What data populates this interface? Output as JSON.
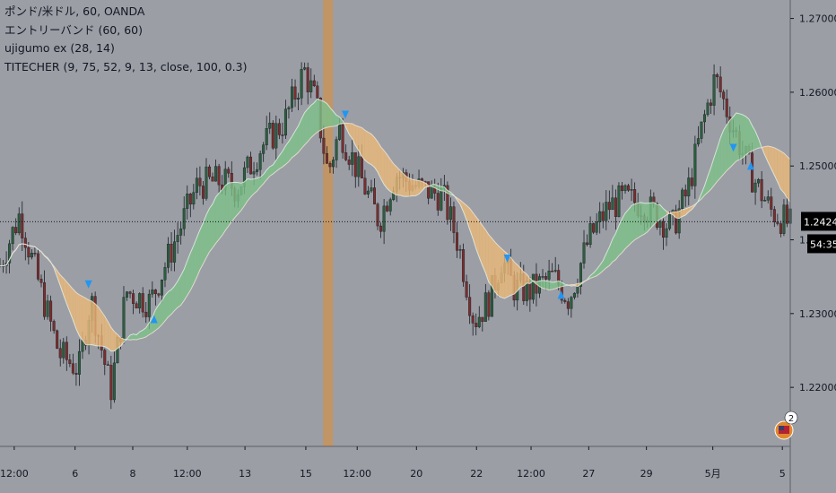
{
  "legend": {
    "line1": "ポンド/米ドル, 60, OANDA",
    "line2": "エントリーバンド (60, 60)",
    "line3": "ujigumo ex (28, 14)",
    "line4": "TITECHER (9, 75, 52, 9, 13, close, 100, 0.3)"
  },
  "price_axis": {
    "ticks": [
      "1.27000",
      "1.26000",
      "1.25000",
      "1.24000",
      "1.23000",
      "1.22000"
    ],
    "current_price": "1.24244",
    "countdown": "54:35"
  },
  "time_axis": {
    "ticks": [
      "12:00",
      "6",
      "8",
      "12:00",
      "13",
      "15",
      "12:00",
      "20",
      "22",
      "12:00",
      "27",
      "29",
      "5月",
      "5"
    ]
  },
  "badge": {
    "count": "2"
  },
  "colors": {
    "background": "#9b9ea5",
    "bull_candle": "#2b5e3e",
    "bear_candle": "#7a2e2e",
    "cloud_bear": "#e8b77a",
    "cloud_bull": "#7fbf8a",
    "signal_marker": "#2196f3",
    "highlight_band": "#c8935a"
  },
  "chart_data": {
    "type": "candlestick",
    "symbol": "ポンド/米ドル",
    "interval": "60",
    "source": "OANDA",
    "ylim": [
      1.212,
      1.2725
    ],
    "price_levels": [
      1.27,
      1.26,
      1.25,
      1.24,
      1.23,
      1.22
    ],
    "last_price": 1.24244,
    "path_anchors": [
      [
        0.0,
        1.2365
      ],
      [
        0.025,
        1.2435
      ],
      [
        0.04,
        1.2375
      ],
      [
        0.075,
        1.2245
      ],
      [
        0.1,
        1.2225
      ],
      [
        0.115,
        1.232
      ],
      [
        0.14,
        1.2195
      ],
      [
        0.16,
        1.233
      ],
      [
        0.19,
        1.2315
      ],
      [
        0.22,
        1.2395
      ],
      [
        0.25,
        1.2475
      ],
      [
        0.28,
        1.248
      ],
      [
        0.3,
        1.247
      ],
      [
        0.33,
        1.2525
      ],
      [
        0.36,
        1.256
      ],
      [
        0.385,
        1.263
      ],
      [
        0.4,
        1.2585
      ],
      [
        0.415,
        1.249
      ],
      [
        0.43,
        1.255
      ],
      [
        0.45,
        1.25
      ],
      [
        0.48,
        1.2425
      ],
      [
        0.5,
        1.249
      ],
      [
        0.53,
        1.247
      ],
      [
        0.56,
        1.246
      ],
      [
        0.58,
        1.2395
      ],
      [
        0.6,
        1.229
      ],
      [
        0.62,
        1.232
      ],
      [
        0.635,
        1.2375
      ],
      [
        0.65,
        1.2335
      ],
      [
        0.67,
        1.233
      ],
      [
        0.7,
        1.235
      ],
      [
        0.72,
        1.232
      ],
      [
        0.745,
        1.24
      ],
      [
        0.77,
        1.2445
      ],
      [
        0.79,
        1.2455
      ],
      [
        0.81,
        1.245
      ],
      [
        0.83,
        1.2435
      ],
      [
        0.85,
        1.2415
      ],
      [
        0.87,
        1.2465
      ],
      [
        0.89,
        1.256
      ],
      [
        0.905,
        1.262
      ],
      [
        0.925,
        1.256
      ],
      [
        0.95,
        1.249
      ],
      [
        0.975,
        1.244
      ],
      [
        1.0,
        1.242
      ]
    ],
    "candle_count": 250,
    "highlight_band_position": 0.41
  }
}
